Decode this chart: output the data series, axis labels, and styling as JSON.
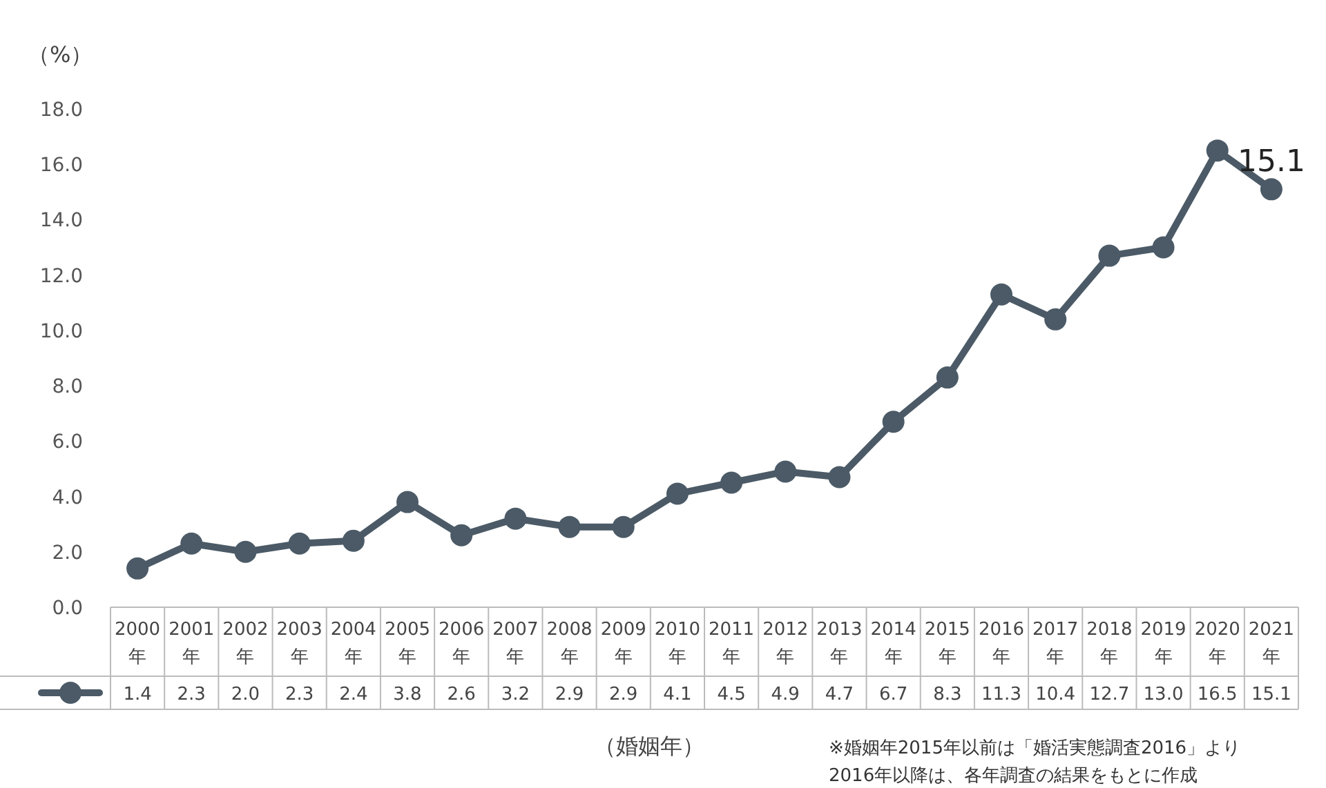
{
  "chart_data": {
    "type": "line",
    "ylabel": "（%）",
    "xlabel": "（婚姻年）",
    "categories": [
      "2000年",
      "2001年",
      "2002年",
      "2003年",
      "2004年",
      "2005年",
      "2006年",
      "2007年",
      "2008年",
      "2009年",
      "2010年",
      "2011年",
      "2012年",
      "2013年",
      "2014年",
      "2015年",
      "2016年",
      "2017年",
      "2018年",
      "2019年",
      "2020年",
      "2021年"
    ],
    "series": [
      {
        "color": "#4b5a66",
        "values": [
          1.4,
          2.3,
          2.0,
          2.3,
          2.4,
          3.8,
          2.6,
          3.2,
          2.9,
          2.9,
          4.1,
          4.5,
          4.9,
          4.7,
          6.7,
          8.3,
          11.3,
          10.4,
          12.7,
          13.0,
          16.5,
          15.1
        ],
        "value_labels": [
          "1.4",
          "2.3",
          "2.0",
          "2.3",
          "2.4",
          "3.8",
          "2.6",
          "3.2",
          "2.9",
          "2.9",
          "4.1",
          "4.5",
          "4.9",
          "4.7",
          "6.7",
          "8.3",
          "11.3",
          "10.4",
          "12.7",
          "13.0",
          "16.5",
          "15.1"
        ]
      }
    ],
    "ylim": [
      0,
      18
    ],
    "yticks": [
      {
        "value": 0,
        "label": "0.0"
      },
      {
        "value": 2,
        "label": "2.0"
      },
      {
        "value": 4,
        "label": "4.0"
      },
      {
        "value": 6,
        "label": "6.0"
      },
      {
        "value": 8,
        "label": "8.0"
      },
      {
        "value": 10,
        "label": "10.0"
      },
      {
        "value": 12,
        "label": "12.0"
      },
      {
        "value": 14,
        "label": "14.0"
      },
      {
        "value": 16,
        "label": "16.0"
      },
      {
        "value": 18,
        "label": "18.0"
      }
    ],
    "marker": "circle",
    "line_style": "solid",
    "annotations": [
      {
        "text": "15.1",
        "x": "2021年",
        "y": 15.1
      },
      "※婚姻年2015年以前は「婚活実態調査2016」より",
      "2016年以降は、各年調査の結果をもとに作成"
    ]
  }
}
